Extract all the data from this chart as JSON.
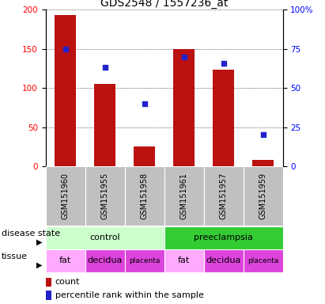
{
  "title": "GDS2548 / 1557236_at",
  "samples": [
    "GSM151960",
    "GSM151955",
    "GSM151958",
    "GSM151961",
    "GSM151957",
    "GSM151959"
  ],
  "counts": [
    193,
    105,
    25,
    150,
    123,
    8
  ],
  "percentile_ranks": [
    75,
    63,
    40,
    70,
    66,
    20
  ],
  "left_ylim": [
    0,
    200
  ],
  "right_ylim": [
    0,
    100
  ],
  "left_yticks": [
    0,
    50,
    100,
    150,
    200
  ],
  "right_yticks": [
    0,
    25,
    50,
    75,
    100
  ],
  "right_yticklabels": [
    "0",
    "25",
    "50",
    "75",
    "100%"
  ],
  "bar_color": "#bb1111",
  "dot_color": "#2222cc",
  "sample_bg": "#c0c0c0",
  "disease_state_groups": [
    {
      "label": "control",
      "start": 0,
      "end": 3,
      "color": "#ccffcc"
    },
    {
      "label": "preeclampsia",
      "start": 3,
      "end": 6,
      "color": "#33cc33"
    }
  ],
  "tissue_labels": [
    "fat",
    "decidua",
    "placenta",
    "fat",
    "decidua",
    "placenta"
  ],
  "tissue_colors": [
    "#ffaaff",
    "#dd44dd",
    "#dd44dd",
    "#ffaaff",
    "#dd44dd",
    "#dd44dd"
  ],
  "legend_count_color": "#bb1111",
  "legend_percentile_color": "#2222cc",
  "title_fontsize": 10,
  "tick_fontsize": 7.5,
  "label_fontsize": 8,
  "sample_fontsize": 7,
  "annotation_fontsize": 6.5
}
